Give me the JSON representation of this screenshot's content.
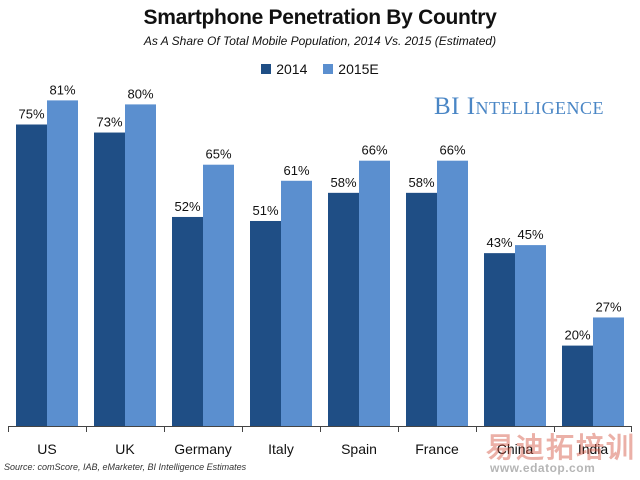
{
  "chart_data": {
    "type": "bar",
    "title": "Smartphone Penetration By Country",
    "subtitle": "As A Share Of Total Mobile Population, 2014 Vs. 2015 (Estimated)",
    "categories": [
      "US",
      "UK",
      "Germany",
      "Italy",
      "Spain",
      "France",
      "China",
      "India"
    ],
    "series": [
      {
        "name": "2014",
        "values": [
          75,
          73,
          52,
          51,
          58,
          58,
          43,
          20
        ],
        "labels": [
          "75%",
          "73%",
          "52%",
          "51%",
          "58%",
          "58%",
          "43%",
          "20%"
        ],
        "color": "#1f4e85"
      },
      {
        "name": "2015E",
        "values": [
          81,
          80,
          65,
          61,
          66,
          66,
          45,
          27
        ],
        "labels": [
          "81%",
          "80%",
          "65%",
          "61%",
          "66%",
          "66%",
          "45%",
          "27%"
        ],
        "color": "#5b8fcf"
      }
    ],
    "ylim": [
      0,
      100
    ],
    "xlabel": "",
    "ylabel": "",
    "grid": false,
    "legend": "top-center"
  },
  "brand": "BI Intelligence",
  "source": "Source: comScore, IAB, eMarketer, BI Intelligence Estimates",
  "watermark": {
    "text": "易迪拓培训",
    "url": "www.edatop.com"
  }
}
